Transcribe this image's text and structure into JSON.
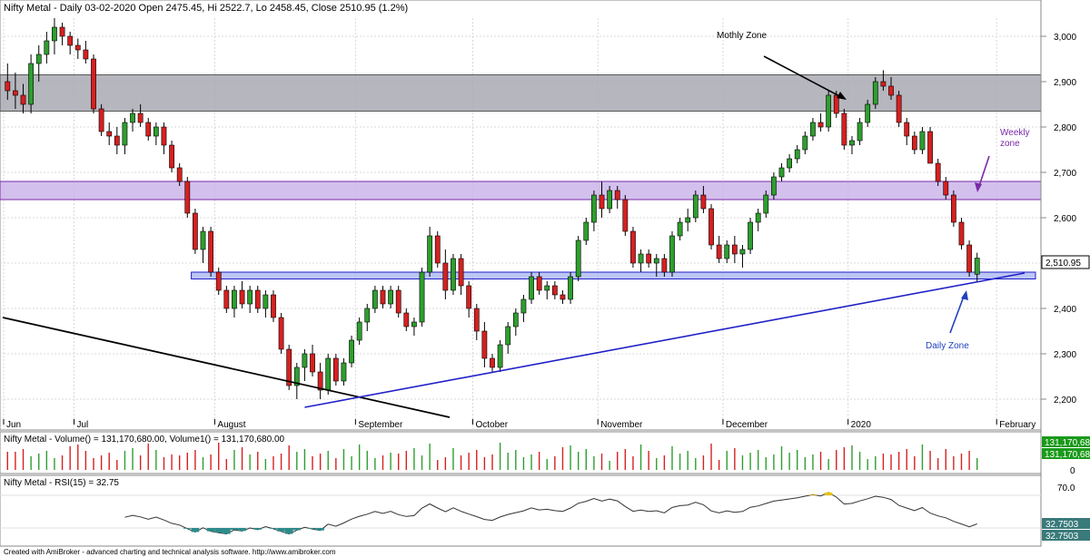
{
  "header": {
    "title": "Nifty Metal - Daily 03-02-2020 Open 2475.45, Hi 2522.7, Lo 2458.45, Close 2510.95 (1.2%)"
  },
  "volume_panel": {
    "title": "Nifty Metal - Volume() = 131,170,680.00, Volume1() = 131,170,680.00",
    "tag_1": "131,170,68",
    "tag_2": "131,170,68",
    "zero_label": "0"
  },
  "rsi_panel": {
    "title": "Nifty Metal - RSI(15) = 32.75",
    "level_high": "70.0",
    "level_low": "30.0",
    "tag_1": "32.7503",
    "tag_2": "32.7503"
  },
  "footer": {
    "text": "Created with AmiBroker - advanced charting and technical analysis software. http://www.amibroker.com"
  },
  "annotations": {
    "monthly_zone": "Mothly Zone",
    "weekly_zone_line1": "Weekly",
    "weekly_zone_line2": "zone",
    "daily_zone": "Daily Zone"
  },
  "last_price_tag": "2,510.95",
  "colors": {
    "up": "#2e9e2e",
    "down": "#d62020",
    "monthly_zone_fill": "#a9a9b3",
    "weekly_zone_fill": "#c8b0e8",
    "daily_zone_fill": "#aab8f0",
    "trendline": "#2020c8",
    "downtrend": "#000000",
    "rsi_line": "#333333",
    "rsi_below": "#2e8b8b",
    "rsi_above": "#e8c000",
    "volume_tag_bg": "#1a9a1a",
    "rsi_tag_bg": "#3a7a7a",
    "annotation_purple": "#7a2aa8",
    "annotation_blue": "#2040c0"
  },
  "chart_data": {
    "type": "candlestick",
    "title": "Nifty Metal - Daily 03-02-2020 Open 2475.45, Hi 2522.7, Lo 2458.45, Close 2510.95 (1.2%)",
    "ylim": [
      2160,
      3040
    ],
    "y_ticks": [
      "3,000",
      "2,900",
      "2,800",
      "2,700",
      "2,600",
      "2,500",
      "2,400",
      "2,300",
      "2,200"
    ],
    "x_labels": [
      "Jun",
      "Jul",
      "August",
      "September",
      "October",
      "November",
      "December",
      "2020",
      "February"
    ],
    "ohlc": [
      [
        2900,
        2940,
        2860,
        2880
      ],
      [
        2880,
        2920,
        2840,
        2870
      ],
      [
        2870,
        2895,
        2830,
        2850
      ],
      [
        2850,
        2960,
        2830,
        2940
      ],
      [
        2940,
        2980,
        2900,
        2960
      ],
      [
        2960,
        3010,
        2940,
        2990
      ],
      [
        2990,
        3040,
        2960,
        3020
      ],
      [
        3020,
        3030,
        2980,
        3000
      ],
      [
        3000,
        3010,
        2960,
        2980
      ],
      [
        2980,
        2995,
        2950,
        2970
      ],
      [
        2970,
        2990,
        2940,
        2950
      ],
      [
        2950,
        2960,
        2830,
        2840
      ],
      [
        2840,
        2850,
        2780,
        2790
      ],
      [
        2790,
        2810,
        2760,
        2780
      ],
      [
        2780,
        2800,
        2740,
        2760
      ],
      [
        2760,
        2820,
        2740,
        2810
      ],
      [
        2810,
        2840,
        2790,
        2830
      ],
      [
        2830,
        2850,
        2800,
        2810
      ],
      [
        2810,
        2820,
        2770,
        2780
      ],
      [
        2780,
        2810,
        2760,
        2800
      ],
      [
        2800,
        2810,
        2740,
        2760
      ],
      [
        2760,
        2770,
        2700,
        2710
      ],
      [
        2710,
        2720,
        2670,
        2680
      ],
      [
        2680,
        2690,
        2600,
        2610
      ],
      [
        2610,
        2620,
        2520,
        2530
      ],
      [
        2530,
        2580,
        2500,
        2570
      ],
      [
        2570,
        2580,
        2470,
        2480
      ],
      [
        2480,
        2490,
        2430,
        2440
      ],
      [
        2440,
        2450,
        2390,
        2400
      ],
      [
        2400,
        2450,
        2380,
        2440
      ],
      [
        2440,
        2460,
        2400,
        2410
      ],
      [
        2410,
        2450,
        2390,
        2440
      ],
      [
        2440,
        2450,
        2390,
        2400
      ],
      [
        2400,
        2440,
        2380,
        2430
      ],
      [
        2430,
        2440,
        2370,
        2380
      ],
      [
        2380,
        2390,
        2300,
        2310
      ],
      [
        2310,
        2320,
        2220,
        2230
      ],
      [
        2230,
        2280,
        2200,
        2270
      ],
      [
        2270,
        2310,
        2240,
        2300
      ],
      [
        2300,
        2320,
        2250,
        2260
      ],
      [
        2260,
        2280,
        2200,
        2220
      ],
      [
        2220,
        2300,
        2210,
        2290
      ],
      [
        2290,
        2300,
        2230,
        2240
      ],
      [
        2240,
        2290,
        2230,
        2280
      ],
      [
        2280,
        2340,
        2270,
        2330
      ],
      [
        2330,
        2380,
        2320,
        2370
      ],
      [
        2370,
        2410,
        2350,
        2400
      ],
      [
        2400,
        2450,
        2390,
        2440
      ],
      [
        2440,
        2450,
        2400,
        2410
      ],
      [
        2410,
        2450,
        2400,
        2440
      ],
      [
        2440,
        2450,
        2380,
        2390
      ],
      [
        2390,
        2400,
        2350,
        2360
      ],
      [
        2360,
        2380,
        2340,
        2370
      ],
      [
        2370,
        2490,
        2360,
        2480
      ],
      [
        2480,
        2580,
        2470,
        2560
      ],
      [
        2560,
        2570,
        2490,
        2500
      ],
      [
        2500,
        2530,
        2420,
        2440
      ],
      [
        2440,
        2520,
        2430,
        2510
      ],
      [
        2510,
        2520,
        2430,
        2450
      ],
      [
        2450,
        2460,
        2380,
        2400
      ],
      [
        2400,
        2410,
        2330,
        2350
      ],
      [
        2350,
        2370,
        2270,
        2290
      ],
      [
        2290,
        2300,
        2260,
        2270
      ],
      [
        2270,
        2330,
        2260,
        2320
      ],
      [
        2320,
        2370,
        2300,
        2360
      ],
      [
        2360,
        2400,
        2340,
        2390
      ],
      [
        2390,
        2430,
        2370,
        2420
      ],
      [
        2420,
        2480,
        2410,
        2470
      ],
      [
        2470,
        2480,
        2430,
        2440
      ],
      [
        2440,
        2460,
        2420,
        2450
      ],
      [
        2450,
        2460,
        2420,
        2430
      ],
      [
        2430,
        2440,
        2410,
        2420
      ],
      [
        2420,
        2480,
        2410,
        2470
      ],
      [
        2470,
        2560,
        2460,
        2550
      ],
      [
        2550,
        2600,
        2540,
        2590
      ],
      [
        2590,
        2660,
        2570,
        2650
      ],
      [
        2650,
        2680,
        2600,
        2620
      ],
      [
        2620,
        2670,
        2610,
        2660
      ],
      [
        2660,
        2670,
        2620,
        2640
      ],
      [
        2640,
        2650,
        2560,
        2570
      ],
      [
        2570,
        2580,
        2490,
        2500
      ],
      [
        2500,
        2530,
        2480,
        2520
      ],
      [
        2520,
        2530,
        2490,
        2500
      ],
      [
        2500,
        2520,
        2470,
        2510
      ],
      [
        2510,
        2520,
        2470,
        2480
      ],
      [
        2480,
        2570,
        2470,
        2560
      ],
      [
        2560,
        2600,
        2550,
        2590
      ],
      [
        2590,
        2620,
        2570,
        2600
      ],
      [
        2600,
        2660,
        2590,
        2650
      ],
      [
        2650,
        2670,
        2610,
        2620
      ],
      [
        2620,
        2630,
        2530,
        2540
      ],
      [
        2540,
        2560,
        2500,
        2510
      ],
      [
        2510,
        2550,
        2500,
        2540
      ],
      [
        2540,
        2560,
        2500,
        2520
      ],
      [
        2520,
        2540,
        2490,
        2530
      ],
      [
        2530,
        2600,
        2520,
        2590
      ],
      [
        2590,
        2620,
        2570,
        2610
      ],
      [
        2610,
        2660,
        2600,
        2650
      ],
      [
        2650,
        2700,
        2640,
        2690
      ],
      [
        2690,
        2720,
        2680,
        2710
      ],
      [
        2710,
        2740,
        2700,
        2730
      ],
      [
        2730,
        2760,
        2720,
        2750
      ],
      [
        2750,
        2790,
        2740,
        2780
      ],
      [
        2780,
        2820,
        2770,
        2810
      ],
      [
        2810,
        2830,
        2790,
        2800
      ],
      [
        2800,
        2880,
        2790,
        2870
      ],
      [
        2870,
        2880,
        2820,
        2830
      ],
      [
        2830,
        2840,
        2750,
        2760
      ],
      [
        2760,
        2780,
        2740,
        2770
      ],
      [
        2770,
        2820,
        2760,
        2810
      ],
      [
        2810,
        2860,
        2800,
        2850
      ],
      [
        2850,
        2910,
        2840,
        2900
      ],
      [
        2900,
        2925,
        2880,
        2890
      ],
      [
        2890,
        2910,
        2860,
        2870
      ],
      [
        2870,
        2880,
        2800,
        2810
      ],
      [
        2810,
        2820,
        2760,
        2780
      ],
      [
        2780,
        2790,
        2740,
        2750
      ],
      [
        2750,
        2800,
        2740,
        2790
      ],
      [
        2790,
        2800,
        2720,
        2720
      ],
      [
        2720,
        2730,
        2670,
        2680
      ],
      [
        2680,
        2690,
        2640,
        2650
      ],
      [
        2650,
        2660,
        2580,
        2590
      ],
      [
        2590,
        2600,
        2530,
        2540
      ],
      [
        2540,
        2550,
        2470,
        2480
      ],
      [
        2475.45,
        2522.7,
        2458.45,
        2510.95
      ]
    ],
    "zones": [
      {
        "name": "Mothly Zone",
        "low": 2835,
        "high": 2915
      },
      {
        "name": "Weekly zone",
        "low": 2640,
        "high": 2680
      },
      {
        "name": "Daily Zone",
        "low": 2465,
        "high": 2480
      }
    ],
    "rsi_levels": [
      70,
      30
    ],
    "rsi_last": 32.75,
    "volume_last": 131170680
  }
}
